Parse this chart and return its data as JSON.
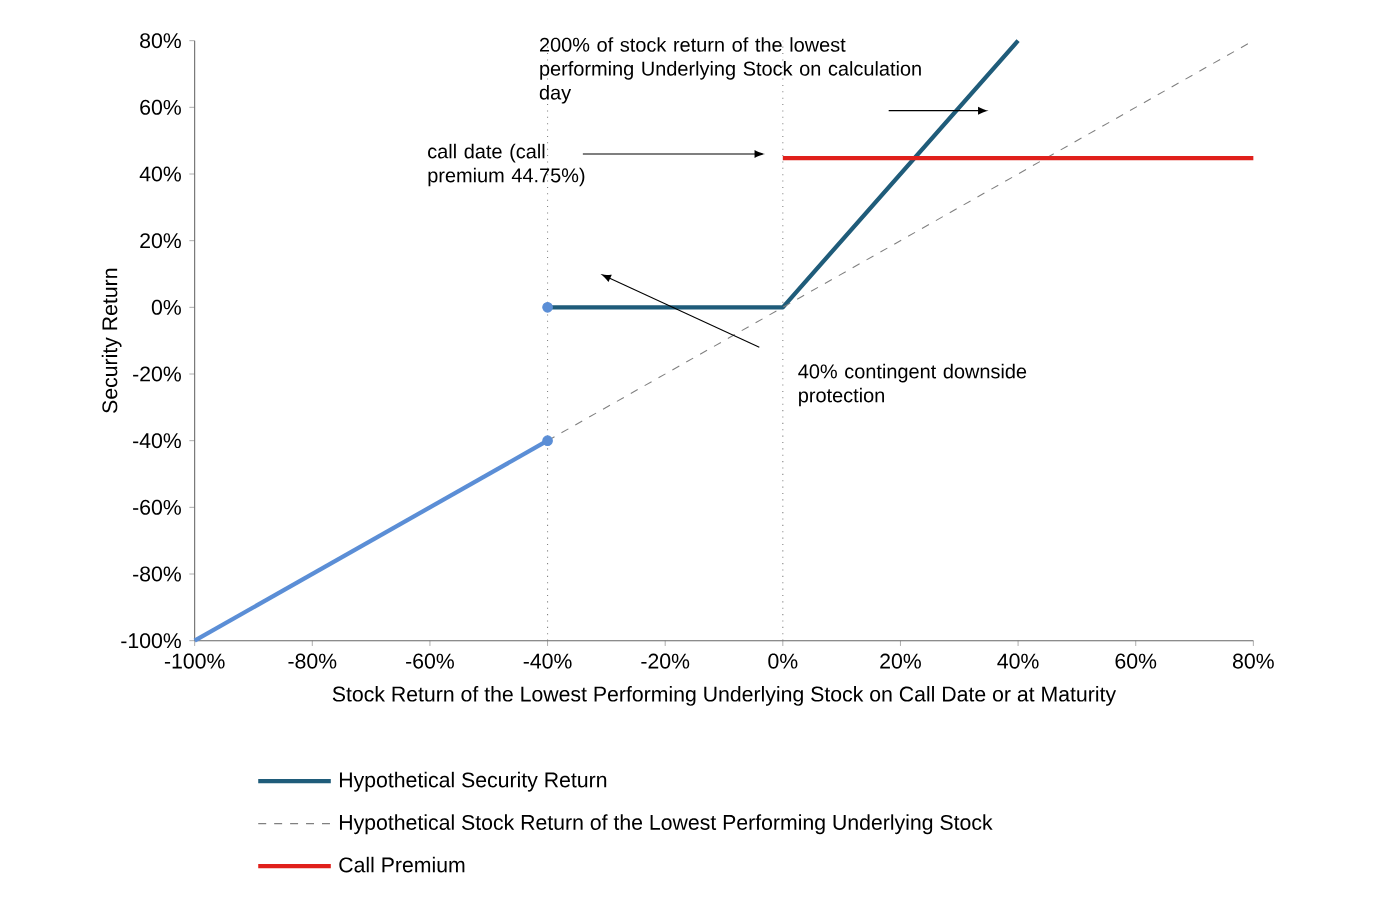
{
  "chart_data": {
    "type": "line",
    "xlabel": "Stock Return of the Lowest Performing Underlying Stock on Call Date or at Maturity",
    "ylabel": "Security Return",
    "xlim": [
      -100,
      80
    ],
    "ylim": [
      -100,
      80
    ],
    "xticks": [
      {
        "value": -100,
        "label": "-100%"
      },
      {
        "value": -80,
        "label": "-80%"
      },
      {
        "value": -60,
        "label": "-60%"
      },
      {
        "value": -40,
        "label": "-40%"
      },
      {
        "value": -20,
        "label": "-20%"
      },
      {
        "value": 0,
        "label": "0%"
      },
      {
        "value": 20,
        "label": "20%"
      },
      {
        "value": 40,
        "label": "40%"
      },
      {
        "value": 60,
        "label": "60%"
      },
      {
        "value": 80,
        "label": "80%"
      }
    ],
    "yticks": [
      {
        "value": -100,
        "label": "-100%"
      },
      {
        "value": -80,
        "label": "-80%"
      },
      {
        "value": -60,
        "label": "-60%"
      },
      {
        "value": -40,
        "label": "-40%"
      },
      {
        "value": -20,
        "label": "-20%"
      },
      {
        "value": 0,
        "label": "0%"
      },
      {
        "value": 20,
        "label": "20%"
      },
      {
        "value": 40,
        "label": "40%"
      },
      {
        "value": 60,
        "label": "60%"
      },
      {
        "value": 80,
        "label": "80%"
      }
    ],
    "series": [
      {
        "name": "Hypothetical Security Return",
        "color": "#1f5c7a",
        "x": [
          -40,
          0,
          40
        ],
        "values": [
          0,
          0,
          80
        ]
      },
      {
        "name": "Hypothetical Stock Return of the Lowest Performing Underlying Stock",
        "color": "#808080",
        "line_style": "dashed",
        "x": [
          -40,
          80
        ],
        "values": [
          -40,
          80
        ]
      },
      {
        "name": "Call Premium",
        "color": "#e0201b",
        "x": [
          0,
          80
        ],
        "values": [
          44.75,
          44.75
        ]
      },
      {
        "color": "#5b8ed6",
        "x": [
          -100,
          -40
        ],
        "values": [
          -100,
          -40
        ]
      },
      {
        "type": "scatter",
        "marker": "circle",
        "color": "#5b8ed6",
        "x": [
          -40
        ],
        "values": [
          0
        ]
      },
      {
        "type": "scatter",
        "marker": "circle",
        "color": "#5b8ed6",
        "x": [
          -40
        ],
        "values": [
          -40
        ]
      }
    ],
    "ref_lines": [
      {
        "axis": "x",
        "value": -40,
        "color": "#808080",
        "line_style": "dotted"
      },
      {
        "axis": "x",
        "value": 0,
        "color": "#808080",
        "line_style": "dotted"
      }
    ],
    "annotations": [
      "200% of stock return of the lowest performing Underlying Stock on calculation day",
      "call date (call premium 44.75%)",
      "40% contingent downside protection"
    ],
    "legend": "bottom",
    "grid": false
  }
}
